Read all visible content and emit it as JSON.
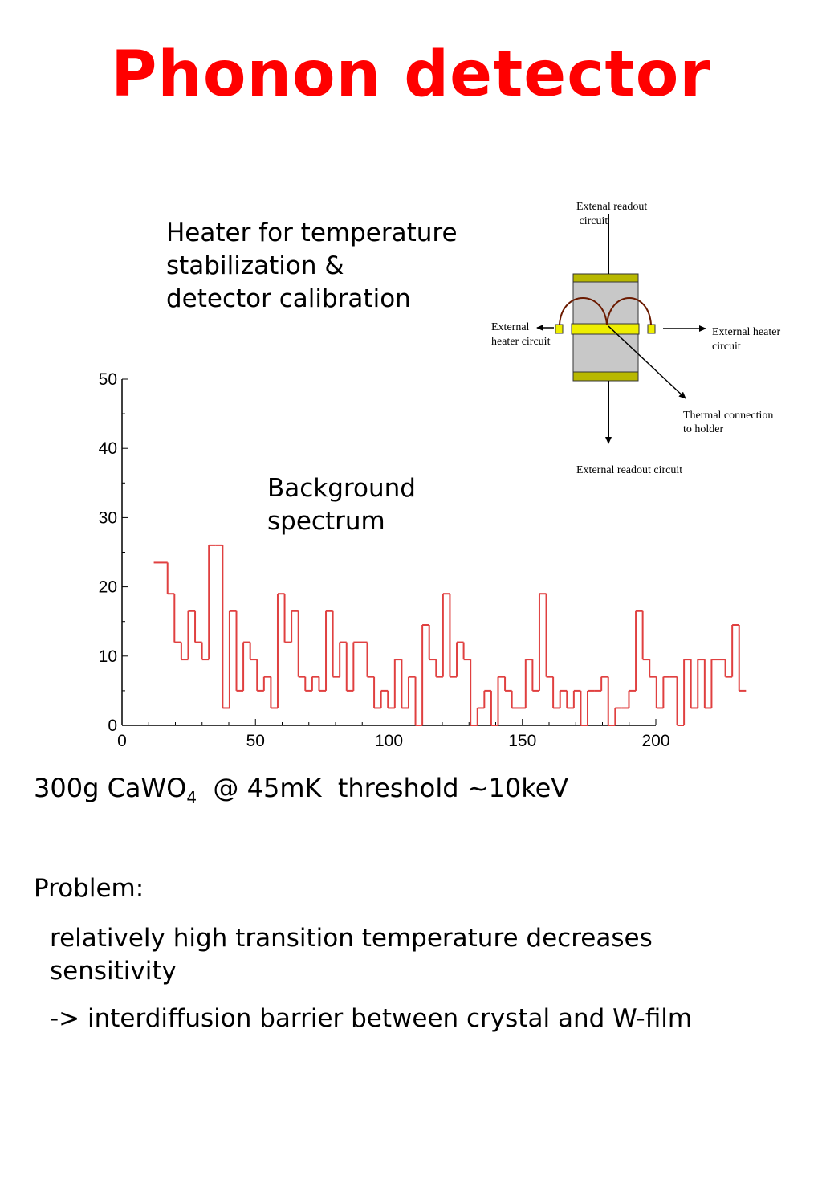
{
  "slide": {
    "title": "Phonon detector",
    "heater_caption": [
      "Heater for temperature",
      "stabilization &",
      "detector calibration"
    ],
    "background_caption": [
      "Background",
      "spectrum"
    ],
    "sample": {
      "prefix": "300g CaWO",
      "subscript": "4",
      "suffix": "  @ 45mK  threshold ~10keV"
    },
    "problem_label": "Problem:",
    "problem_points": [
      "relatively high transition temperature decreases sensitivity",
      "-> interdiffusion barrier between crystal and W-film"
    ]
  },
  "diagram": {
    "readout_top": [
      "Extenal readout",
      " circuit"
    ],
    "readout_bottom": "External readout circuit",
    "heater_left": [
      "External",
      "heater circuit"
    ],
    "heater_right": [
      "External heater",
      "circuit"
    ],
    "thermal": [
      "Thermal connection",
      "to holder"
    ],
    "colors": {
      "crystal": "#c8c8c8",
      "film": "#b8b800",
      "heater": "#eeee00",
      "wire": "#6b1a00"
    }
  },
  "chart_data": {
    "type": "histogram",
    "color": "#e04040",
    "xlim": [
      0,
      200
    ],
    "ylim": [
      0,
      50
    ],
    "x_ticks": [
      0,
      50,
      100,
      150,
      200
    ],
    "y_ticks": [
      0,
      10,
      20,
      30,
      40,
      50
    ],
    "bin_width": 2.58,
    "x_start": 11.9,
    "values": [
      23.5,
      23.5,
      19,
      12,
      9.5,
      16.5,
      12,
      9.5,
      26,
      26,
      2.5,
      16.5,
      5,
      12,
      9.5,
      5,
      7,
      2.5,
      19,
      12,
      16.5,
      7,
      5,
      7,
      5,
      16.5,
      7,
      12,
      5,
      12,
      12,
      7,
      2.5,
      5,
      2.5,
      9.5,
      2.5,
      7,
      0,
      14.5,
      9.5,
      7,
      19,
      7,
      12,
      9.5,
      0,
      2.5,
      5,
      0,
      7,
      5,
      2.5,
      2.5,
      9.5,
      5,
      19,
      7,
      2.5,
      5,
      2.5,
      5,
      0,
      5,
      5,
      7,
      0,
      2.5,
      2.5,
      5,
      16.5,
      9.5,
      7,
      2.5,
      7,
      7,
      0,
      9.5,
      2.5,
      9.5,
      2.5,
      9.5,
      9.5,
      7,
      14.5,
      5
    ]
  }
}
